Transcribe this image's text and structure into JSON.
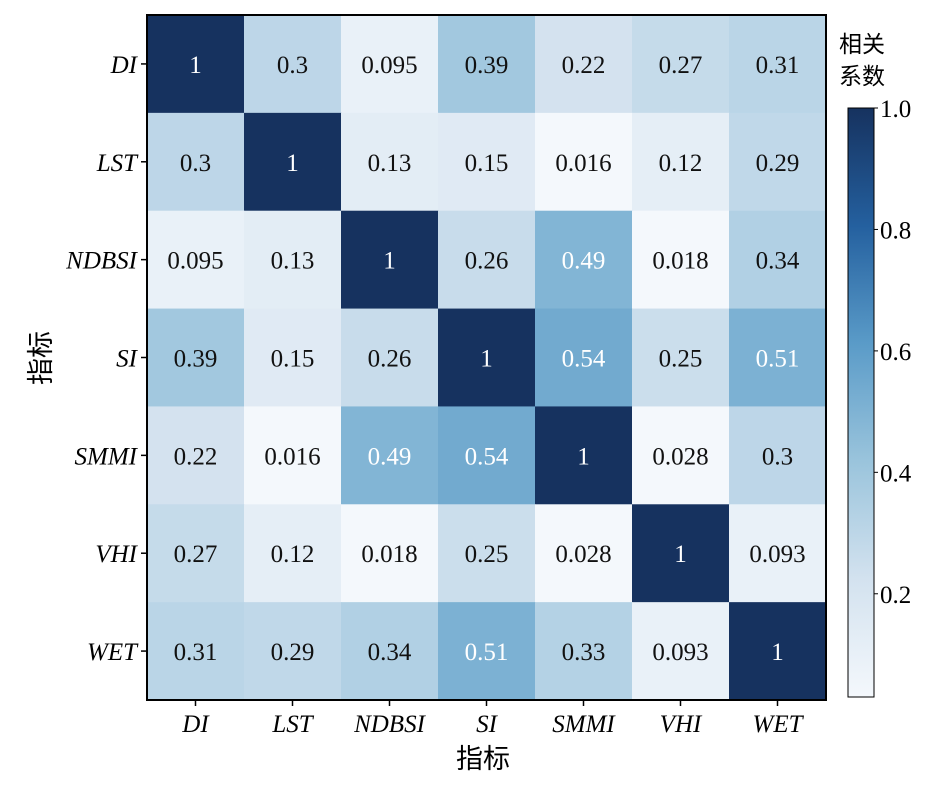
{
  "chart_data": {
    "type": "heatmap",
    "title": "",
    "xlabel": "指标",
    "ylabel": "指标",
    "x_categories": [
      "DI",
      "LST",
      "NDBSI",
      "SI",
      "SMMI",
      "VHI",
      "WET"
    ],
    "y_categories": [
      "DI",
      "LST",
      "NDBSI",
      "SI",
      "SMMI",
      "VHI",
      "WET"
    ],
    "cell_labels": [
      [
        "1",
        "0.3",
        "0.095",
        "0.39",
        "0.22",
        "0.27",
        "0.31"
      ],
      [
        "0.3",
        "1",
        "0.13",
        "0.15",
        "0.016",
        "0.12",
        "0.29"
      ],
      [
        "0.095",
        "0.13",
        "1",
        "0.26",
        "0.49",
        "0.018",
        "0.34"
      ],
      [
        "0.39",
        "0.15",
        "0.26",
        "1",
        "0.54",
        "0.25",
        "0.51"
      ],
      [
        "0.22",
        "0.016",
        "0.49",
        "0.54",
        "1",
        "0.028",
        "0.3"
      ],
      [
        "0.27",
        "0.12",
        "0.018",
        "0.25",
        "0.028",
        "1",
        "0.093"
      ],
      [
        "0.31",
        "0.29",
        "0.34",
        "0.51",
        "0.33",
        "0.093",
        "1"
      ]
    ],
    "values": [
      [
        1,
        0.3,
        0.095,
        0.39,
        0.22,
        0.27,
        0.31
      ],
      [
        0.3,
        1,
        0.13,
        0.15,
        0.016,
        0.12,
        0.29
      ],
      [
        0.095,
        0.13,
        1,
        0.26,
        0.49,
        0.018,
        0.34
      ],
      [
        0.39,
        0.15,
        0.26,
        1,
        0.54,
        0.25,
        0.51
      ],
      [
        0.22,
        0.016,
        0.49,
        0.54,
        1,
        0.028,
        0.3
      ],
      [
        0.27,
        0.12,
        0.018,
        0.25,
        0.028,
        1,
        0.093
      ],
      [
        0.31,
        0.29,
        0.34,
        0.51,
        0.33,
        0.093,
        1
      ]
    ],
    "colorbar": {
      "title_line1": "相关",
      "title_line2": "系数",
      "range": [
        0.03,
        1.0
      ],
      "ticks": [
        0.2,
        0.4,
        0.6,
        0.8,
        1.0
      ],
      "tick_labels": [
        "0.2",
        "0.4",
        "0.6",
        "0.8",
        "1.0"
      ],
      "colormap": "Blues",
      "colors": [
        "#f4f8fc",
        "#d3e2ef",
        "#9ac4dc",
        "#5a9bc8",
        "#24609f",
        "#16325f"
      ]
    },
    "grid": false
  }
}
